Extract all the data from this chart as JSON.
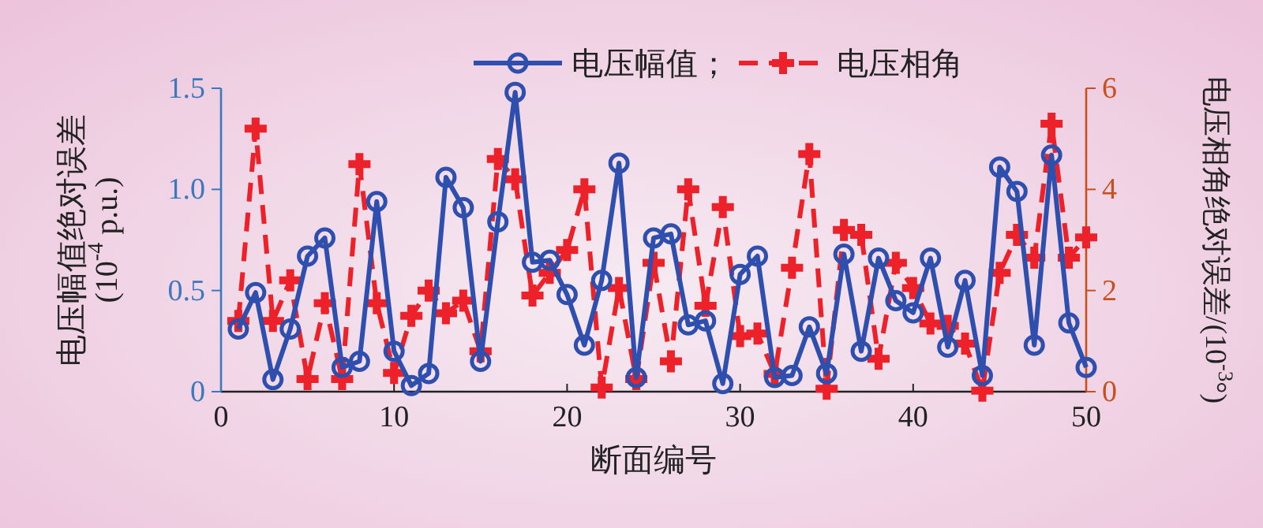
{
  "chart_data": {
    "type": "line",
    "xlabel": "断面编号",
    "ylabel": "电压幅值绝对误差 (10$^{-4}$ p.u.)",
    "y2label": "电压相角绝对误差/(10$^{-3}$°)",
    "x": [
      1,
      2,
      3,
      4,
      5,
      6,
      7,
      8,
      9,
      10,
      11,
      12,
      13,
      14,
      15,
      16,
      17,
      18,
      19,
      20,
      21,
      22,
      23,
      24,
      25,
      26,
      27,
      28,
      29,
      30,
      31,
      32,
      33,
      34,
      35,
      36,
      37,
      38,
      39,
      40,
      41,
      42,
      43,
      44,
      45,
      46,
      47,
      48,
      49,
      50
    ],
    "xlim": [
      0,
      50
    ],
    "xticks": [
      0,
      10,
      20,
      30,
      40,
      50
    ],
    "ylim": [
      0,
      1.5
    ],
    "yticks": [
      0,
      {
        "value": 0.5,
        "label": "0.5"
      },
      {
        "value": 1,
        "label": "1.0"
      },
      {
        "value": 1.5,
        "label": "1.5"
      }
    ],
    "y2lim": [
      0,
      6
    ],
    "y2ticks": [
      0,
      2,
      4,
      6
    ],
    "legend": "top",
    "grid": false,
    "series": [
      {
        "name": "电压幅值；",
        "color": "#2f4fae",
        "marker": "circle",
        "line_style": "solid",
        "values": [
          0.31,
          0.49,
          0.06,
          0.31,
          0.67,
          0.76,
          0.12,
          0.15,
          0.94,
          0.2,
          0.03,
          0.09,
          1.06,
          0.91,
          0.15,
          0.84,
          1.48,
          0.64,
          0.65,
          0.48,
          0.23,
          0.55,
          1.13,
          0.07,
          0.76,
          0.78,
          0.33,
          0.35,
          0.04,
          0.58,
          0.67,
          0.07,
          0.08,
          0.32,
          0.09,
          0.68,
          0.2,
          0.66,
          0.45,
          0.39,
          0.66,
          0.22,
          0.55,
          0.08,
          1.11,
          0.99,
          0.23,
          1.17,
          0.34,
          0.12
        ]
      },
      {
        "name": "电压相角",
        "color": "#ec2129",
        "marker": "cross",
        "line_style": "dashed",
        "axis": "y2",
        "values": [
          1.4,
          5.2,
          1.4,
          2.2,
          0.25,
          1.75,
          0.25,
          4.5,
          1.75,
          0.37,
          1.5,
          2.0,
          1.55,
          1.8,
          0.8,
          4.6,
          4.2,
          1.9,
          2.35,
          2.8,
          4.0,
          0.08,
          2.05,
          0.25,
          2.55,
          0.6,
          4.0,
          1.7,
          3.65,
          1.1,
          1.15,
          0.35,
          2.45,
          4.7,
          0.06,
          3.2,
          3.1,
          0.65,
          2.55,
          2.05,
          1.35,
          1.3,
          0.95,
          0.02,
          2.35,
          3.1,
          2.65,
          5.3,
          2.65,
          3.05
        ]
      }
    ]
  }
}
